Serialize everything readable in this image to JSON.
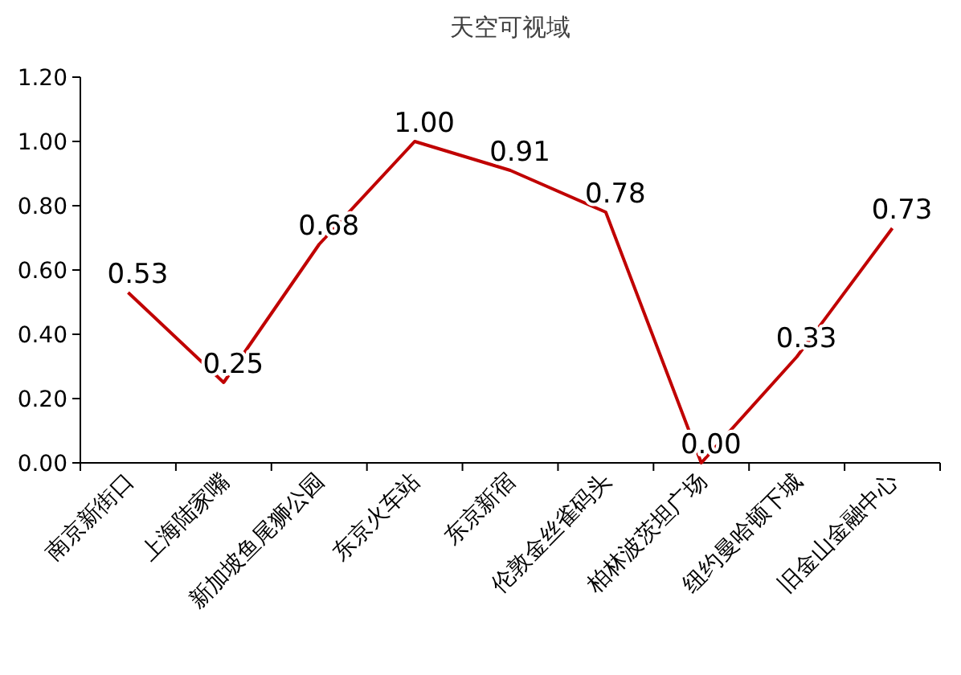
{
  "chart_data": {
    "type": "line",
    "title": "天空可视域",
    "categories": [
      "南京新街口",
      "上海陆家嘴",
      "新加坡鱼尾狮公园",
      "东京火车站",
      "东京新宿",
      "伦敦金丝雀码头",
      "柏林波茨坦广场",
      "纽约曼哈顿下城",
      "旧金山金融中心"
    ],
    "series": [
      {
        "color": "#c00000",
        "values": [
          0.53,
          0.25,
          0.68,
          1.0,
          0.91,
          0.78,
          0.0,
          0.33,
          0.73
        ],
        "value_labels": [
          "0.53",
          "0.25",
          "0.68",
          "1.00",
          "0.91",
          "0.78",
          "0.00",
          "0.33",
          "0.73"
        ]
      }
    ],
    "ylim": [
      0,
      1.2
    ],
    "yticks": [
      {
        "value": 0,
        "label": "0.00"
      },
      {
        "value": 0.2,
        "label": "0.20"
      },
      {
        "value": 0.4,
        "label": "0.40"
      },
      {
        "value": 0.6,
        "label": "0.60"
      },
      {
        "value": 0.8,
        "label": "0.80"
      },
      {
        "value": 1.0,
        "label": "1.00"
      },
      {
        "value": 1.2,
        "label": "1.20"
      }
    ],
    "grid": false,
    "marker": "none",
    "line_style": "solid"
  }
}
